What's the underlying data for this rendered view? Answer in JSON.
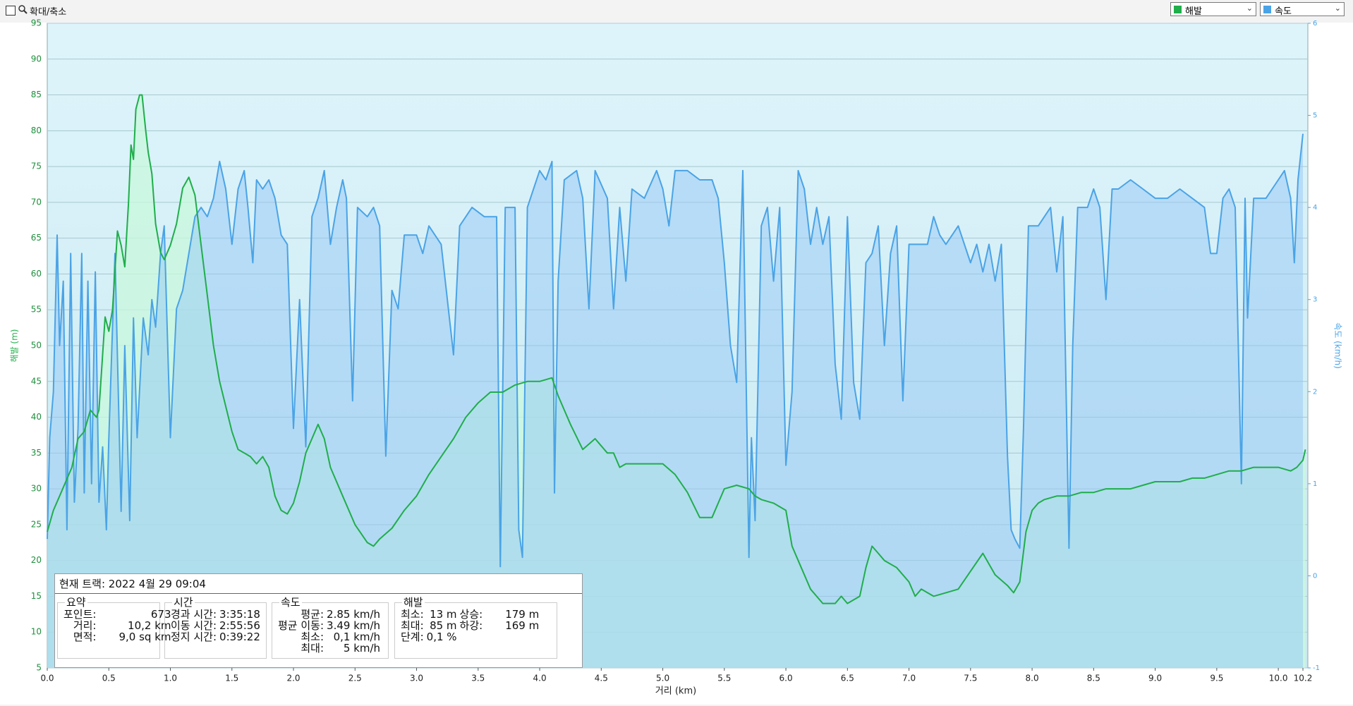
{
  "toolbar": {
    "zoom_label": "확대/축소"
  },
  "chart_data": {
    "type": "line",
    "x_label": "거리 (km)",
    "y_label": "해발 (m)",
    "y2_label": "속도 (km/h)",
    "xlim": [
      0,
      10.24
    ],
    "xticks": [
      {
        "value": 0,
        "label": "0.0"
      },
      0.5,
      {
        "value": 1,
        "label": "1.0"
      },
      1.5,
      {
        "value": 2,
        "label": "2.0"
      },
      2.5,
      {
        "value": 3,
        "label": "3.0"
      },
      3.5,
      {
        "value": 4,
        "label": "4.0"
      },
      4.5,
      {
        "value": 5,
        "label": "5.0"
      },
      5.5,
      {
        "value": 6,
        "label": "6.0"
      },
      6.5,
      {
        "value": 7,
        "label": "7.0"
      },
      7.5,
      {
        "value": 8,
        "label": "8.0"
      },
      8.5,
      {
        "value": 9,
        "label": "9.0"
      },
      9.5,
      {
        "value": 10,
        "label": "10.0"
      },
      10.2
    ],
    "ylim": [
      5,
      95
    ],
    "yticks": [
      5,
      10,
      15,
      20,
      25,
      30,
      35,
      40,
      45,
      50,
      55,
      60,
      65,
      70,
      75,
      80,
      85,
      90,
      95
    ],
    "y2lim": [
      -1,
      6
    ],
    "y2ticks": [
      -1,
      0,
      1,
      2,
      3,
      4,
      5,
      6
    ],
    "grid": true,
    "series": [
      {
        "name": "해발",
        "color": "#1fae4a",
        "fill": "rgba(200,248,220,0.75)",
        "x": [
          0,
          0.05,
          0.1,
          0.2,
          0.25,
          0.3,
          0.35,
          0.4,
          0.42,
          0.47,
          0.5,
          0.53,
          0.57,
          0.6,
          0.63,
          0.66,
          0.68,
          0.7,
          0.72,
          0.75,
          0.77,
          0.8,
          0.82,
          0.85,
          0.88,
          0.92,
          0.95,
          1.0,
          1.05,
          1.1,
          1.15,
          1.2,
          1.25,
          1.3,
          1.35,
          1.4,
          1.5,
          1.55,
          1.6,
          1.65,
          1.7,
          1.75,
          1.8,
          1.85,
          1.9,
          1.95,
          2.0,
          2.05,
          2.1,
          2.15,
          2.2,
          2.25,
          2.3,
          2.4,
          2.5,
          2.6,
          2.65,
          2.7,
          2.8,
          2.9,
          3.0,
          3.1,
          3.2,
          3.3,
          3.4,
          3.5,
          3.6,
          3.7,
          3.8,
          3.9,
          4.0,
          4.1,
          4.15,
          4.25,
          4.35,
          4.45,
          4.5,
          4.55,
          4.6,
          4.65,
          4.7,
          4.8,
          4.9,
          5.0,
          5.1,
          5.2,
          5.3,
          5.4,
          5.45,
          5.5,
          5.6,
          5.7,
          5.75,
          5.8,
          5.9,
          6.0,
          6.05,
          6.1,
          6.2,
          6.3,
          6.4,
          6.45,
          6.5,
          6.6,
          6.65,
          6.7,
          6.75,
          6.8,
          6.9,
          7.0,
          7.05,
          7.1,
          7.15,
          7.2,
          7.3,
          7.4,
          7.5,
          7.6,
          7.7,
          7.8,
          7.85,
          7.9,
          7.95,
          8.0,
          8.05,
          8.1,
          8.2,
          8.3,
          8.4,
          8.5,
          8.6,
          8.7,
          8.8,
          8.9,
          9.0,
          9.1,
          9.2,
          9.3,
          9.4,
          9.5,
          9.6,
          9.7,
          9.8,
          9.9,
          10.0,
          10.1,
          10.15,
          10.2,
          10.22
        ],
        "values": [
          24,
          27,
          29,
          33,
          37,
          38,
          41,
          40,
          41,
          54,
          52,
          55,
          66,
          64,
          61,
          70,
          78,
          76,
          83,
          85,
          85,
          80,
          77,
          74,
          67,
          63,
          62,
          64,
          67,
          72,
          73.5,
          71,
          64,
          57,
          50,
          45,
          38,
          35.5,
          35,
          34.5,
          33.5,
          34.5,
          33,
          29,
          27,
          26.5,
          28,
          31,
          35,
          37,
          39,
          37,
          33,
          29,
          25,
          22.5,
          22,
          23,
          24.5,
          27,
          29,
          32,
          34.5,
          37,
          40,
          42,
          43.5,
          43.5,
          44.5,
          45,
          45,
          45.5,
          43,
          39,
          35.5,
          37,
          36,
          35,
          35,
          33,
          33.5,
          33.5,
          33.5,
          33.5,
          32,
          29.5,
          26,
          26,
          28,
          30,
          30.5,
          30,
          29,
          28.5,
          28,
          27,
          22,
          20,
          16,
          14,
          14,
          15,
          14,
          15,
          19,
          22,
          21,
          20,
          19,
          17,
          15,
          16,
          15.5,
          15,
          15.5,
          16,
          18.5,
          21,
          18,
          16.5,
          15.5,
          17,
          24,
          27,
          28,
          28.5,
          29,
          29,
          29.5,
          29.5,
          30,
          30,
          30,
          30.5,
          31,
          31,
          31,
          31.5,
          31.5,
          32,
          32.5,
          32.5,
          33,
          33,
          33,
          32.5,
          33,
          34,
          35.5
        ]
      },
      {
        "name": "속도",
        "color": "#4aa3e6",
        "fill": "rgba(150,200,245,0.5)",
        "axis": "y2",
        "x": [
          0,
          0.02,
          0.05,
          0.08,
          0.1,
          0.13,
          0.16,
          0.19,
          0.22,
          0.25,
          0.28,
          0.3,
          0.33,
          0.36,
          0.39,
          0.42,
          0.45,
          0.48,
          0.5,
          0.55,
          0.6,
          0.63,
          0.67,
          0.7,
          0.73,
          0.78,
          0.82,
          0.85,
          0.88,
          0.92,
          0.95,
          1.0,
          1.05,
          1.1,
          1.15,
          1.2,
          1.25,
          1.3,
          1.35,
          1.4,
          1.45,
          1.5,
          1.55,
          1.6,
          1.63,
          1.67,
          1.7,
          1.75,
          1.8,
          1.85,
          1.9,
          1.95,
          2.0,
          2.05,
          2.1,
          2.15,
          2.2,
          2.25,
          2.3,
          2.35,
          2.4,
          2.43,
          2.48,
          2.52,
          2.6,
          2.65,
          2.7,
          2.75,
          2.8,
          2.85,
          2.9,
          3.0,
          3.05,
          3.1,
          3.2,
          3.3,
          3.35,
          3.45,
          3.55,
          3.65,
          3.68,
          3.72,
          3.8,
          3.83,
          3.86,
          3.9,
          4.0,
          4.05,
          4.1,
          4.12,
          4.15,
          4.2,
          4.3,
          4.35,
          4.4,
          4.45,
          4.55,
          4.6,
          4.65,
          4.7,
          4.75,
          4.85,
          4.95,
          5.0,
          5.05,
          5.1,
          5.2,
          5.3,
          5.4,
          5.45,
          5.5,
          5.55,
          5.6,
          5.65,
          5.7,
          5.72,
          5.75,
          5.8,
          5.85,
          5.9,
          5.95,
          6.0,
          6.05,
          6.1,
          6.15,
          6.2,
          6.25,
          6.3,
          6.35,
          6.4,
          6.45,
          6.5,
          6.55,
          6.6,
          6.65,
          6.7,
          6.75,
          6.8,
          6.85,
          6.9,
          6.95,
          7.0,
          7.1,
          7.15,
          7.2,
          7.25,
          7.3,
          7.4,
          7.5,
          7.55,
          7.6,
          7.65,
          7.7,
          7.75,
          7.8,
          7.83,
          7.86,
          7.9,
          7.93,
          7.97,
          8.0,
          8.05,
          8.1,
          8.15,
          8.2,
          8.25,
          8.3,
          8.33,
          8.37,
          8.45,
          8.5,
          8.55,
          8.6,
          8.65,
          8.7,
          8.8,
          8.9,
          9.0,
          9.1,
          9.2,
          9.3,
          9.4,
          9.45,
          9.5,
          9.55,
          9.6,
          9.65,
          9.7,
          9.73,
          9.75,
          9.8,
          9.85,
          9.9,
          9.95,
          10.0,
          10.05,
          10.1,
          10.13,
          10.16,
          10.2
        ],
        "values": [
          0.4,
          1.5,
          2,
          3.7,
          2.5,
          3.2,
          0.5,
          3.5,
          0.8,
          1.6,
          3.5,
          0.9,
          3.2,
          1,
          3.3,
          0.8,
          1.4,
          0.5,
          1.5,
          3.5,
          0.7,
          2.5,
          0.6,
          2.8,
          1.5,
          2.8,
          2.4,
          3,
          2.7,
          3.5,
          3.8,
          1.5,
          2.9,
          3.1,
          3.5,
          3.9,
          4,
          3.9,
          4.1,
          4.5,
          4.2,
          3.6,
          4.2,
          4.4,
          4,
          3.4,
          4.3,
          4.2,
          4.3,
          4.1,
          3.7,
          3.6,
          1.6,
          3,
          1.4,
          3.9,
          4.1,
          4.4,
          3.6,
          4,
          4.3,
          4.1,
          1.9,
          4,
          3.9,
          4,
          3.8,
          1.3,
          3.1,
          2.9,
          3.7,
          3.7,
          3.5,
          3.8,
          3.6,
          2.4,
          3.8,
          4,
          3.9,
          3.9,
          0.1,
          4,
          4,
          0.5,
          0.2,
          4,
          4.4,
          4.3,
          4.5,
          0.9,
          3.2,
          4.3,
          4.4,
          4.1,
          2.9,
          4.4,
          4.1,
          2.9,
          4,
          3.2,
          4.2,
          4.1,
          4.4,
          4.2,
          3.8,
          4.4,
          4.4,
          4.3,
          4.3,
          4.1,
          3.4,
          2.5,
          2.1,
          4.4,
          0.2,
          1.5,
          0.6,
          3.8,
          4,
          3.2,
          4,
          1.2,
          2,
          4.4,
          4.2,
          3.6,
          4,
          3.6,
          3.9,
          2.3,
          1.7,
          3.9,
          2.1,
          1.7,
          3.4,
          3.5,
          3.8,
          2.5,
          3.5,
          3.8,
          1.9,
          3.6,
          3.6,
          3.6,
          3.9,
          3.7,
          3.6,
          3.8,
          3.4,
          3.6,
          3.3,
          3.6,
          3.2,
          3.6,
          1.3,
          0.5,
          0.4,
          0.3,
          1.6,
          3.8,
          3.8,
          3.8,
          3.9,
          4,
          3.3,
          3.9,
          0.3,
          2.5,
          4,
          4,
          4.2,
          4,
          3,
          4.2,
          4.2,
          4.3,
          4.2,
          4.1,
          4.1,
          4.2,
          4.1,
          4,
          3.5,
          3.5,
          4.1,
          4.2,
          4,
          1,
          4.1,
          2.8,
          4.1,
          4.1,
          4.1,
          4.2,
          4.3,
          4.4,
          4.1,
          3.4,
          4.3,
          4.8
        ]
      }
    ]
  },
  "info_panel": {
    "title": "현재 트랙: 2022 4월 29 09:04",
    "sections": [
      {
        "heading": "요약",
        "rows": [
          [
            "포인트:",
            "673"
          ],
          [
            "거리:",
            "10,2 km"
          ],
          [
            "면적:",
            "9,0 sq km"
          ]
        ]
      },
      {
        "heading": "시간",
        "rows": [
          [
            "경과 시간:",
            "3:35:18"
          ],
          [
            "이동 시간:",
            "2:55:56"
          ],
          [
            "정지 시간:",
            "0:39:22"
          ]
        ]
      },
      {
        "heading": "속도",
        "rows": [
          [
            "평균:",
            "2.85 km/h"
          ],
          [
            "평균 이동:",
            "3.49 km/h"
          ],
          [
            "최소:",
            "0,1 km/h"
          ],
          [
            "최대:",
            "5 km/h"
          ]
        ]
      },
      {
        "heading": "해발",
        "rows": [
          [
            "최소:",
            "13 m",
            "상승:",
            "179 m"
          ],
          [
            "최대:",
            "85 m",
            "하강:",
            "169 m"
          ],
          [
            "단계:",
            "0,1 %"
          ]
        ]
      }
    ]
  }
}
